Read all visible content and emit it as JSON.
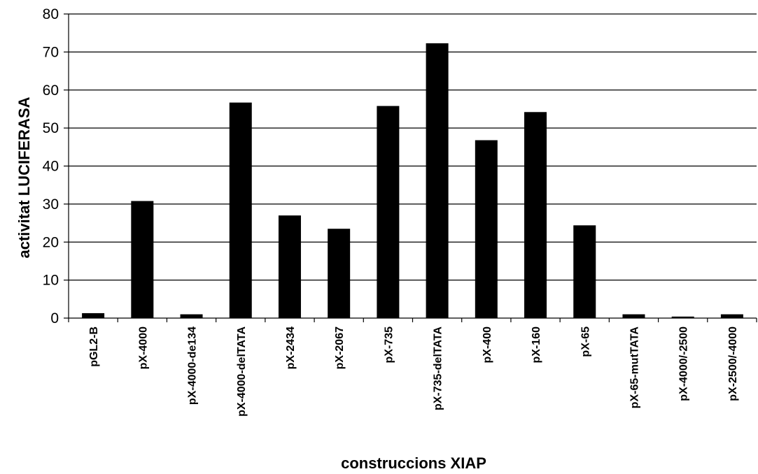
{
  "chart_data": {
    "type": "bar",
    "title": "",
    "xlabel": "construccions XIAP",
    "ylabel": "activitat LUCIFERASA",
    "ylim": [
      0,
      80
    ],
    "yticks": [
      0,
      10,
      20,
      30,
      40,
      50,
      60,
      70,
      80
    ],
    "grid": true,
    "legend": "none",
    "bar_color": "#000000",
    "categories": [
      "pGL2-B",
      "pX-4000",
      "pX-4000-de134",
      "pX-4000-delTATA",
      "pX-2434",
      "pX-2067",
      "pX-735",
      "pX-735-delTATA",
      "pX-400",
      "pX-160",
      "pX-65",
      "pX-65-mutTATA",
      "pX-4000/-2500",
      "pX-2500/-4000"
    ],
    "values": [
      1.3,
      30.8,
      1.0,
      56.7,
      27.0,
      23.5,
      55.8,
      72.3,
      46.8,
      54.2,
      24.4,
      1.0,
      0.4,
      1.0
    ]
  }
}
